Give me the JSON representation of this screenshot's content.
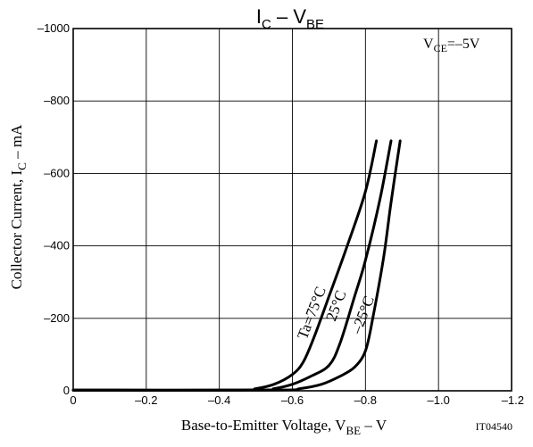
{
  "chart_data": {
    "type": "line",
    "title": {
      "main": "I",
      "sub1": "C",
      "sep": " – ",
      "main2": "V",
      "sub2": "BE"
    },
    "xlabel": {
      "main": "Base-to-Emitter Voltage, V",
      "sub": "BE",
      "tail": " – V"
    },
    "ylabel": {
      "main": "Collector Current, I",
      "sub": "C",
      "tail": " – mA"
    },
    "condition": {
      "main": "V",
      "sub": "CE",
      "tail": "=–5V"
    },
    "code": "IT04540",
    "xlim": [
      0,
      -1.2
    ],
    "ylim": [
      0,
      -1000
    ],
    "grid": true,
    "x_ticks": [
      0,
      -0.2,
      -0.4,
      -0.6,
      -0.8,
      -1.0,
      -1.2
    ],
    "x_tick_labels": [
      "0",
      "–0.2",
      "–0.4",
      "–0.6",
      "–0.8",
      "–1.0",
      "–1.2"
    ],
    "y_ticks": [
      0,
      -200,
      -400,
      -600,
      -800,
      -1000
    ],
    "y_tick_labels": [
      "0",
      "–200",
      "–400",
      "–600",
      "–800",
      "–1000"
    ],
    "series": [
      {
        "name": "Ta=75°C",
        "label_position": {
          "x": -0.665,
          "y": -210
        },
        "points": [
          [
            0,
            -2
          ],
          [
            -0.45,
            -2
          ],
          [
            -0.5,
            -6
          ],
          [
            -0.55,
            -18
          ],
          [
            -0.6,
            -45
          ],
          [
            -0.63,
            -80
          ],
          [
            -0.66,
            -150
          ],
          [
            -0.7,
            -260
          ],
          [
            -0.75,
            -400
          ],
          [
            -0.8,
            -550
          ],
          [
            -0.83,
            -690
          ]
        ]
      },
      {
        "name": "25°C",
        "label_position": {
          "x": -0.732,
          "y": -230
        },
        "points": [
          [
            0,
            -2
          ],
          [
            -0.5,
            -2
          ],
          [
            -0.55,
            -6
          ],
          [
            -0.6,
            -18
          ],
          [
            -0.65,
            -40
          ],
          [
            -0.7,
            -70
          ],
          [
            -0.73,
            -130
          ],
          [
            -0.77,
            -260
          ],
          [
            -0.8,
            -360
          ],
          [
            -0.84,
            -530
          ],
          [
            -0.87,
            -690
          ]
        ]
      },
      {
        "name": "–25°C",
        "label_position": {
          "x": -0.805,
          "y": -205
        },
        "points": [
          [
            0,
            -2
          ],
          [
            -0.55,
            -2
          ],
          [
            -0.62,
            -6
          ],
          [
            -0.68,
            -18
          ],
          [
            -0.73,
            -40
          ],
          [
            -0.77,
            -65
          ],
          [
            -0.8,
            -110
          ],
          [
            -0.82,
            -200
          ],
          [
            -0.85,
            -370
          ],
          [
            -0.87,
            -520
          ],
          [
            -0.895,
            -690
          ]
        ]
      }
    ]
  }
}
